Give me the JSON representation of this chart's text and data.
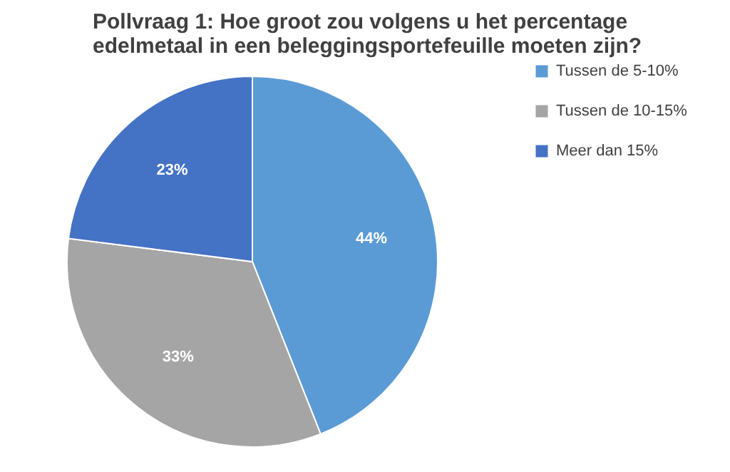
{
  "chart_data": {
    "type": "pie",
    "title": "Pollvraag 1: Hoe groot zou volgens u het percentage edelmetaal in een beleggingsportefeuille moeten zijn?",
    "categories": [
      "Tussen de 5-10%",
      "Tussen de 10-15%",
      "Meer dan 15%"
    ],
    "values": [
      44,
      33,
      23
    ],
    "colors": [
      "#5b9bd5",
      "#a5a5a5",
      "#4472c4"
    ],
    "value_labels": [
      "44%",
      "33%",
      "23%"
    ],
    "legend": "right"
  }
}
